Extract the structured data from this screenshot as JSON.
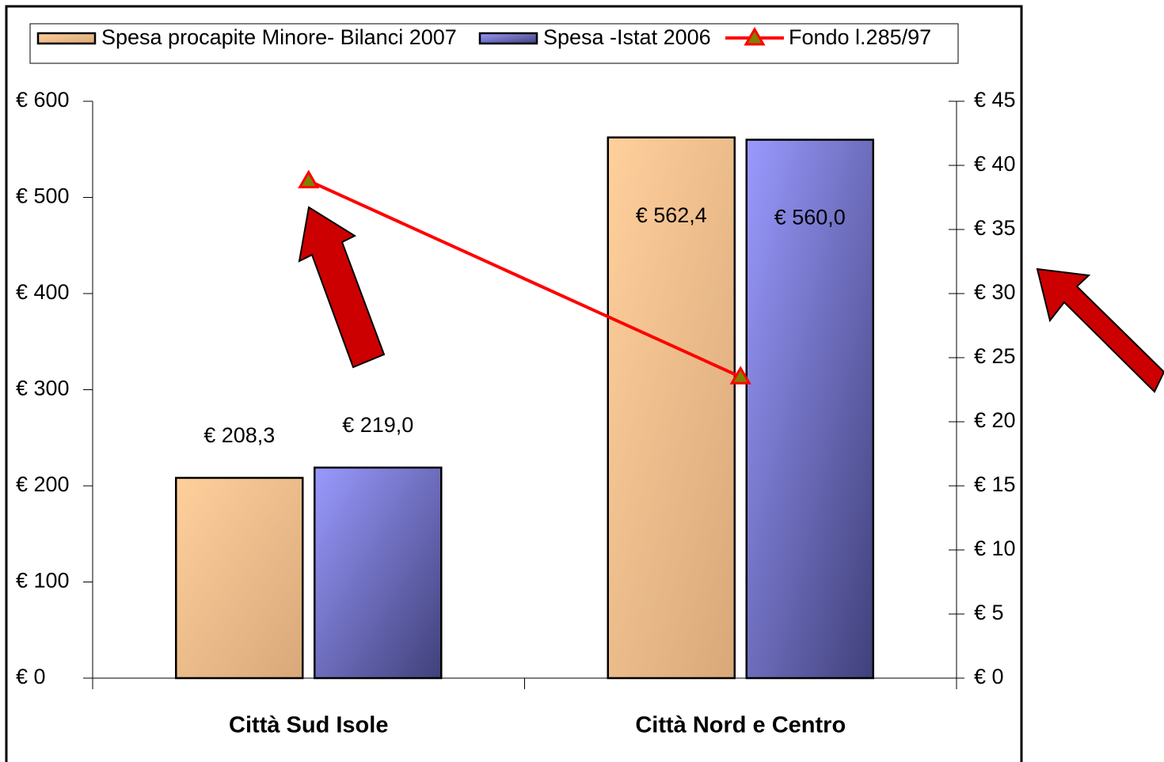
{
  "chart_data": {
    "type": "bar",
    "categories": [
      "Città Sud Isole",
      "Città Nord e Centro"
    ],
    "series": [
      {
        "name": "Spesa procapite Minore- Bilanci 2007",
        "color": "#f5c08c",
        "type": "bar",
        "values": [
          208.3,
          562.4
        ],
        "value_labels": [
          "€ 208,3",
          "€ 562,4"
        ]
      },
      {
        "name": "Spesa -Istat 2006",
        "color": "#8080e0",
        "type": "bar",
        "values": [
          219.0,
          560.0
        ],
        "value_labels": [
          "€ 219,0",
          "€ 560,0"
        ]
      },
      {
        "name": "Fondo l.285/97",
        "color": "#ff0000",
        "type": "line",
        "axis": "y2",
        "values": [
          38.8,
          23.5
        ]
      }
    ],
    "ylim": [
      0,
      600
    ],
    "yticks": [
      {
        "value": 0,
        "label": "€ 0"
      },
      {
        "value": 100,
        "label": "€ 100"
      },
      {
        "value": 200,
        "label": "€ 200"
      },
      {
        "value": 300,
        "label": "€ 300"
      },
      {
        "value": 400,
        "label": "€ 400"
      },
      {
        "value": 500,
        "label": "€ 500"
      },
      {
        "value": 600,
        "label": "€ 600"
      }
    ],
    "y2lim": [
      0,
      45
    ],
    "y2ticks": [
      {
        "value": 0,
        "label": "€ 0"
      },
      {
        "value": 5,
        "label": "€ 5"
      },
      {
        "value": 10,
        "label": "€ 10"
      },
      {
        "value": 15,
        "label": "€ 15"
      },
      {
        "value": 20,
        "label": "€ 20"
      },
      {
        "value": 25,
        "label": "€ 25"
      },
      {
        "value": 30,
        "label": "€ 30"
      },
      {
        "value": 35,
        "label": "€ 35"
      },
      {
        "value": 40,
        "label": "€ 40"
      },
      {
        "value": 45,
        "label": "€ 45"
      }
    ],
    "legend": "top"
  }
}
